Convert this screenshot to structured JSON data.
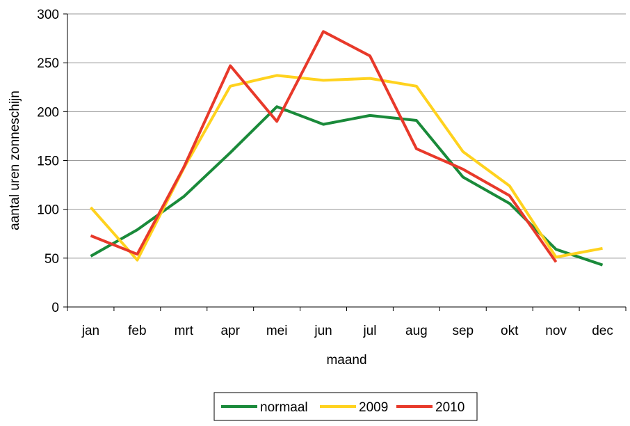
{
  "chart_data": {
    "type": "line",
    "title": "",
    "xlabel": "maand",
    "ylabel": "aantal uren zonneschijn",
    "ylim": [
      0,
      300
    ],
    "yticks": [
      0,
      50,
      100,
      150,
      200,
      250,
      300
    ],
    "categories": [
      "jan",
      "feb",
      "mrt",
      "apr",
      "mei",
      "jun",
      "jul",
      "aug",
      "sep",
      "okt",
      "nov",
      "dec"
    ],
    "grid": true,
    "legend_position": "bottom",
    "series": [
      {
        "name": "normaal",
        "color": "#1a8a3a",
        "values": [
          52,
          79,
          113,
          158,
          205,
          187,
          196,
          191,
          133,
          106,
          59,
          43
        ]
      },
      {
        "name": "2009",
        "color": "#ffd21e",
        "values": [
          102,
          48,
          142,
          226,
          237,
          232,
          234,
          226,
          159,
          124,
          51,
          60
        ]
      },
      {
        "name": "2010",
        "color": "#e8392a",
        "values": [
          73,
          54,
          143,
          247,
          190,
          282,
          257,
          162,
          141,
          114,
          46,
          null
        ]
      }
    ]
  }
}
